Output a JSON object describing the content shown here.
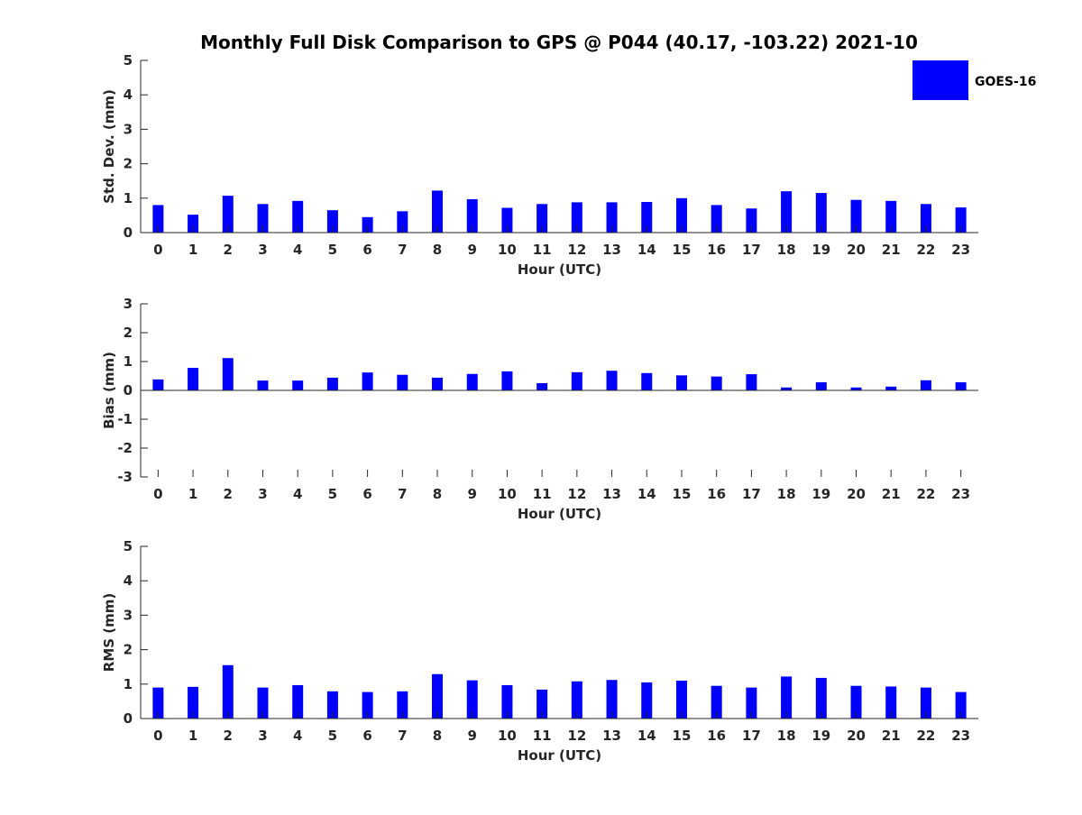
{
  "title": "Monthly Full Disk Comparison to GPS @ P044 (40.17, -103.22) 2021-10",
  "legend": {
    "label": "GOES-16",
    "color": "#0000ff",
    "placement": "top-right"
  },
  "bar_color": "#0000ff",
  "chart_data": [
    {
      "type": "bar",
      "categories": [
        0,
        1,
        2,
        3,
        4,
        5,
        6,
        7,
        8,
        9,
        10,
        11,
        12,
        13,
        14,
        15,
        16,
        17,
        18,
        19,
        20,
        21,
        22,
        23
      ],
      "series": [
        {
          "name": "GOES-16",
          "values": [
            0.8,
            0.52,
            1.07,
            0.83,
            0.92,
            0.65,
            0.45,
            0.62,
            1.22,
            0.97,
            0.72,
            0.83,
            0.88,
            0.88,
            0.89,
            1.0,
            0.8,
            0.7,
            1.2,
            1.15,
            0.95,
            0.92,
            0.83,
            0.73
          ]
        }
      ],
      "xlabel": "Hour (UTC)",
      "ylabel": "Std. Dev. (mm)",
      "ylim": [
        0,
        5
      ],
      "yticks": [
        0,
        1,
        2,
        3,
        4,
        5
      ],
      "grid": false
    },
    {
      "type": "bar",
      "categories": [
        0,
        1,
        2,
        3,
        4,
        5,
        6,
        7,
        8,
        9,
        10,
        11,
        12,
        13,
        14,
        15,
        16,
        17,
        18,
        19,
        20,
        21,
        22,
        23
      ],
      "series": [
        {
          "name": "GOES-16",
          "values": [
            0.38,
            0.78,
            1.12,
            0.34,
            0.34,
            0.44,
            0.62,
            0.54,
            0.44,
            0.57,
            0.66,
            0.25,
            0.63,
            0.68,
            0.6,
            0.52,
            0.48,
            0.56,
            0.1,
            0.28,
            0.1,
            0.13,
            0.35,
            0.28
          ]
        }
      ],
      "xlabel": "Hour (UTC)",
      "ylabel": "Bias (mm)",
      "ylim": [
        -3,
        3
      ],
      "yticks": [
        -3,
        -2,
        -1,
        0,
        1,
        2,
        3
      ],
      "grid": false
    },
    {
      "type": "bar",
      "categories": [
        0,
        1,
        2,
        3,
        4,
        5,
        6,
        7,
        8,
        9,
        10,
        11,
        12,
        13,
        14,
        15,
        16,
        17,
        18,
        19,
        20,
        21,
        22,
        23
      ],
      "series": [
        {
          "name": "GOES-16",
          "values": [
            0.9,
            0.92,
            1.55,
            0.9,
            0.97,
            0.79,
            0.77,
            0.79,
            1.29,
            1.11,
            0.97,
            0.84,
            1.08,
            1.12,
            1.05,
            1.1,
            0.95,
            0.9,
            1.22,
            1.18,
            0.95,
            0.93,
            0.9,
            0.77
          ]
        }
      ],
      "xlabel": "Hour (UTC)",
      "ylabel": "RMS (mm)",
      "ylim": [
        0,
        5
      ],
      "yticks": [
        0,
        1,
        2,
        3,
        4,
        5
      ],
      "grid": false
    }
  ]
}
